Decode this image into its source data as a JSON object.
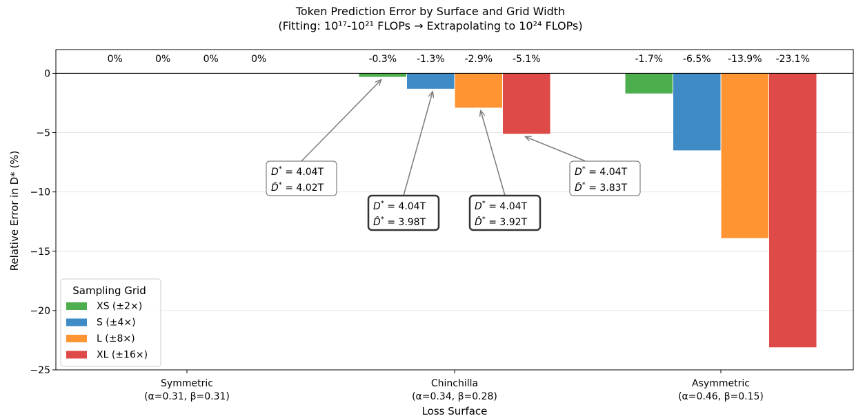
{
  "chart_data": {
    "type": "bar",
    "title_line1": "Token Prediction Error by Surface and Grid Width",
    "title_line2": "(Fitting: 10¹⁷-10²¹ FLOPs → Extrapolating to 10²⁴ FLOPs)",
    "xlabel": "Loss Surface",
    "ylabel": "Relative Error in D* (%)",
    "ylim": [
      -25,
      2
    ],
    "yticks": [
      0,
      -5,
      -10,
      -15,
      -20,
      -25
    ],
    "ytick_labels": [
      "0",
      "−5",
      "−10",
      "−15",
      "−20",
      "−25"
    ],
    "grid": true,
    "categories": [
      {
        "line1": "Symmetric",
        "line2": "(α=0.31, β=0.31)"
      },
      {
        "line1": "Chinchilla",
        "line2": "(α=0.34, β=0.28)"
      },
      {
        "line1": "Asymmetric",
        "line2": "(α=0.46, β=0.15)"
      }
    ],
    "series": [
      {
        "name": "XS (±2×)",
        "color": "#4cae4c",
        "values": [
          0,
          -0.3,
          -1.7
        ],
        "labels": [
          "0%",
          "-0.3%",
          "-1.7%"
        ]
      },
      {
        "name": "S (±4×)",
        "color": "#3e8bc6",
        "values": [
          0,
          -1.3,
          -6.5
        ],
        "labels": [
          "0%",
          "-1.3%",
          "-6.5%"
        ]
      },
      {
        "name": "L (±8×)",
        "color": "#ff9433",
        "values": [
          0,
          -2.9,
          -13.9
        ],
        "labels": [
          "0%",
          "-2.9%",
          "-13.9%"
        ]
      },
      {
        "name": "XL (±16×)",
        "color": "#de4a47",
        "values": [
          0,
          -5.1,
          -23.1
        ],
        "labels": [
          "0%",
          "-5.1%",
          "-23.1%"
        ]
      }
    ],
    "legend": {
      "title": "Sampling Grid",
      "placement": "lower-left"
    },
    "annotations": [
      {
        "series": 0,
        "category": 1,
        "true_value": "4.04T",
        "predicted_value": "4.02T",
        "style": "thin"
      },
      {
        "series": 1,
        "category": 1,
        "true_value": "4.04T",
        "predicted_value": "3.98T",
        "style": "bold"
      },
      {
        "series": 2,
        "category": 1,
        "true_value": "4.04T",
        "predicted_value": "3.92T",
        "style": "bold"
      },
      {
        "series": 3,
        "category": 1,
        "true_value": "4.04T",
        "predicted_value": "3.83T",
        "style": "thin"
      }
    ]
  }
}
